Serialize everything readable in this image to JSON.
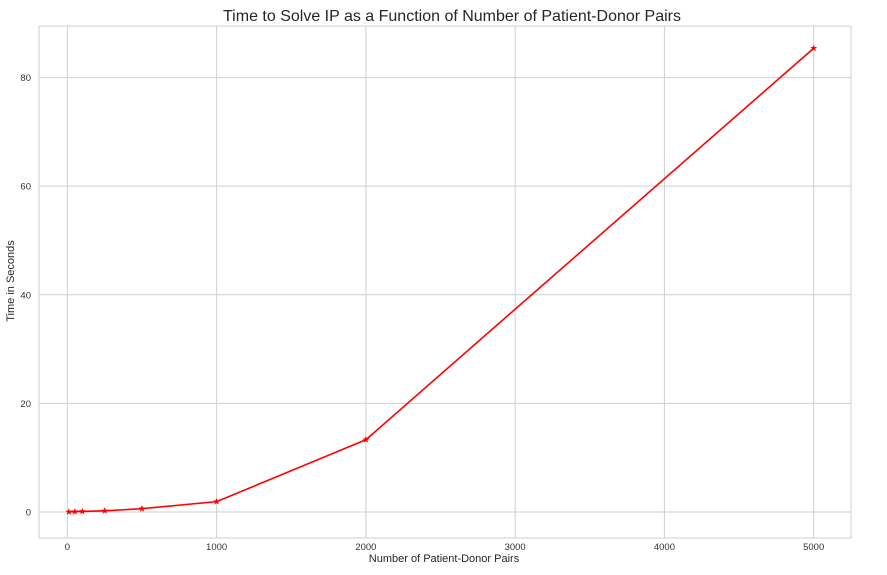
{
  "chart_data": {
    "type": "line",
    "title": "Time to Solve IP as a Function of Number of Patient-Donor Pairs",
    "xlabel": "Number of Patient-Donor Pairs",
    "ylabel": "Time in Seconds",
    "xlim": [
      -190,
      5250
    ],
    "ylim": [
      -4.8,
      89.5
    ],
    "xticks": [
      0,
      1000,
      2000,
      3000,
      4000,
      5000
    ],
    "yticks": [
      0,
      20,
      40,
      60,
      80
    ],
    "grid": true,
    "series": [
      {
        "color": "#ff0000",
        "marker": "star",
        "x": [
          10,
          50,
          100,
          250,
          500,
          1000,
          2000,
          5000
        ],
        "y": [
          0.01,
          0.05,
          0.1,
          0.2,
          0.6,
          1.9,
          13.3,
          85.4
        ]
      }
    ]
  }
}
